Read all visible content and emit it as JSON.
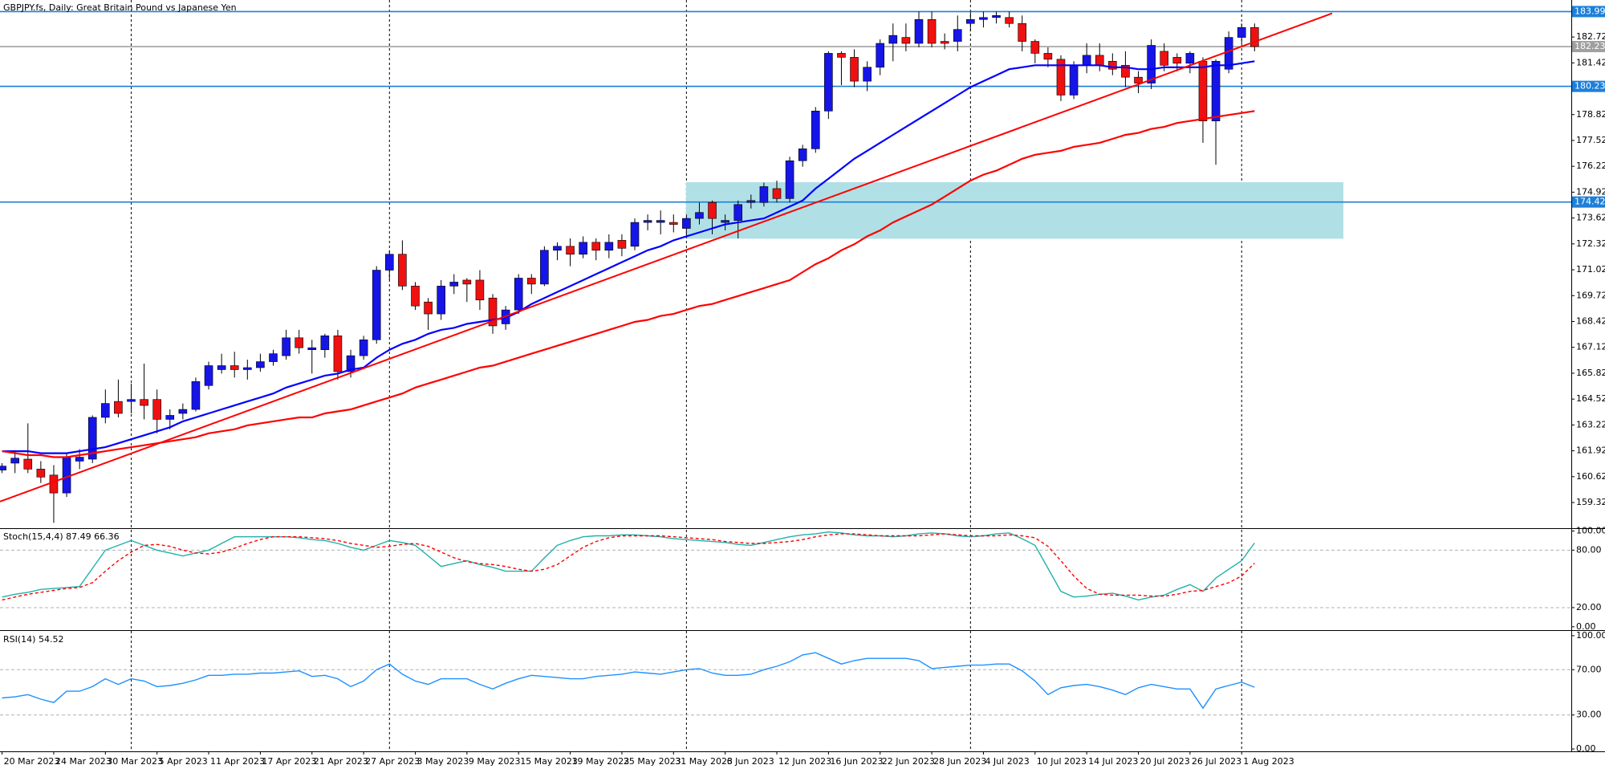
{
  "chart_data": [
    {
      "type": "candlestick",
      "title": "GBPJPY.fs, Daily:  Great Britain Pound vs Japanese Yen",
      "categories": [
        "20 Mar 2023",
        null,
        null,
        null,
        "24 Mar 2023",
        null,
        null,
        null,
        "30 Mar 2023",
        null,
        null,
        null,
        "5 Apr 2023",
        null,
        null,
        null,
        "11 Apr 2023",
        null,
        null,
        null,
        "17 Apr 2023",
        null,
        null,
        null,
        "21 Apr 2023",
        null,
        null,
        null,
        "27 Apr 2023",
        null,
        null,
        null,
        "3 May 2023",
        null,
        null,
        null,
        "9 May 2023",
        null,
        null,
        null,
        "15 May 2023",
        null,
        null,
        null,
        "19 May 2023",
        null,
        null,
        null,
        "25 May 2023",
        null,
        null,
        null,
        "31 May 2023",
        null,
        null,
        null,
        "6 Jun 2023",
        null,
        null,
        null,
        "12 Jun 2023",
        null,
        null,
        null,
        "16 Jun 2023",
        null,
        null,
        null,
        "22 Jun 2023",
        null,
        null,
        null,
        "28 Jun 2023",
        null,
        null,
        null,
        "4 Jul 2023",
        null,
        null,
        null,
        "10 Jul 2023",
        null,
        null,
        null,
        "14 Jul 2023",
        null,
        null,
        null,
        "20 Jul 2023",
        null,
        null,
        null,
        "26 Jul 2023",
        null,
        null,
        null,
        "1 Aug 2023",
        null
      ],
      "open": [
        160.95,
        161.3,
        161.5,
        161.0,
        160.7,
        159.8,
        161.4,
        161.5,
        163.6,
        164.4,
        164.4,
        164.5,
        164.5,
        163.5,
        163.8,
        164.0,
        165.2,
        166.0,
        166.2,
        166.0,
        166.1,
        166.4,
        166.7,
        167.6,
        167.0,
        167.0,
        167.7,
        165.9,
        166.7,
        167.5,
        171.0,
        171.8,
        170.2,
        169.4,
        168.8,
        170.2,
        170.5,
        170.5,
        169.6,
        168.3,
        169.0,
        170.6,
        170.3,
        172.0,
        172.2,
        171.8,
        172.4,
        172.0,
        172.5,
        172.2,
        173.4,
        173.4,
        173.4,
        173.1,
        173.6,
        174.4,
        173.4,
        173.5,
        174.4,
        174.4,
        175.1,
        174.6,
        176.5,
        177.1,
        179.0,
        181.9,
        181.7,
        180.5,
        181.2,
        182.4,
        182.7,
        182.4,
        183.6,
        182.5,
        182.5,
        183.4,
        183.6,
        183.7,
        183.7,
        183.4,
        182.5,
        181.9,
        181.6,
        179.8,
        181.3,
        181.8,
        181.5,
        181.3,
        180.7,
        180.4,
        182.0,
        181.7,
        181.4,
        181.5,
        178.5,
        181.1,
        182.7,
        183.2
      ],
      "high": [
        161.3,
        161.9,
        163.3,
        161.4,
        161.2,
        161.8,
        162.0,
        163.7,
        165.0,
        165.5,
        165.3,
        166.3,
        165.0,
        164.0,
        164.3,
        165.6,
        166.4,
        166.8,
        166.9,
        166.5,
        166.8,
        167.0,
        168.0,
        168.0,
        167.5,
        167.8,
        168.0,
        167.0,
        167.7,
        171.2,
        172.0,
        172.5,
        170.4,
        169.6,
        170.5,
        170.8,
        170.6,
        171.0,
        169.8,
        169.2,
        170.8,
        170.8,
        172.2,
        172.4,
        172.6,
        172.7,
        172.6,
        172.8,
        172.8,
        173.6,
        173.8,
        174.0,
        173.8,
        173.8,
        174.4,
        174.5,
        173.8,
        174.5,
        174.8,
        175.4,
        175.5,
        176.7,
        177.3,
        179.2,
        182.0,
        182.0,
        182.1,
        181.5,
        182.6,
        183.4,
        183.4,
        184.0,
        184.0,
        182.9,
        183.8,
        184.0,
        184.0,
        184.0,
        184.0,
        183.8,
        182.6,
        182.2,
        181.8,
        181.5,
        182.4,
        182.4,
        181.9,
        182.0,
        181.0,
        182.6,
        182.4,
        181.9,
        182.0,
        181.7,
        181.6,
        183.0,
        183.4,
        183.4
      ],
      "low": [
        160.8,
        160.8,
        160.8,
        160.3,
        158.3,
        159.6,
        161.0,
        161.3,
        163.3,
        163.6,
        163.8,
        163.5,
        162.8,
        163.0,
        163.5,
        163.9,
        165.0,
        165.8,
        165.6,
        165.5,
        165.9,
        166.2,
        166.5,
        166.8,
        165.8,
        166.6,
        165.5,
        165.6,
        166.5,
        167.3,
        170.5,
        170.0,
        169.0,
        168.0,
        168.5,
        169.8,
        169.4,
        169.0,
        167.8,
        168.0,
        168.8,
        169.8,
        170.2,
        171.5,
        171.2,
        171.6,
        171.5,
        171.6,
        171.7,
        172.0,
        173.0,
        172.8,
        172.9,
        172.6,
        173.3,
        172.8,
        173.0,
        172.6,
        174.1,
        174.2,
        174.4,
        174.4,
        176.2,
        176.9,
        178.6,
        180.3,
        180.2,
        180.0,
        180.8,
        181.5,
        182.0,
        182.2,
        182.2,
        182.1,
        182.0,
        183.0,
        183.2,
        183.4,
        183.2,
        182.0,
        181.4,
        181.2,
        179.5,
        179.6,
        180.9,
        181.0,
        180.8,
        180.2,
        179.9,
        180.1,
        181.0,
        181.0,
        180.9,
        177.4,
        176.3,
        180.9,
        182.4,
        182.0
      ],
      "close": [
        161.15,
        161.55,
        161.0,
        160.6,
        159.8,
        161.6,
        161.6,
        163.6,
        164.3,
        163.8,
        164.5,
        164.2,
        163.5,
        163.7,
        164.0,
        165.4,
        166.2,
        166.2,
        166.0,
        166.1,
        166.4,
        166.8,
        167.6,
        167.1,
        167.1,
        167.7,
        165.9,
        166.7,
        167.5,
        171.0,
        171.8,
        170.2,
        169.2,
        168.8,
        170.2,
        170.4,
        170.3,
        169.5,
        168.2,
        169.0,
        170.6,
        170.3,
        172.0,
        172.2,
        171.8,
        172.4,
        172.0,
        172.4,
        172.1,
        173.4,
        173.5,
        173.5,
        173.3,
        173.6,
        173.9,
        173.6,
        173.5,
        174.3,
        174.5,
        175.2,
        174.6,
        176.5,
        177.1,
        179.0,
        181.9,
        181.7,
        180.5,
        181.2,
        182.4,
        182.8,
        182.4,
        183.6,
        182.4,
        182.4,
        183.1,
        183.6,
        183.7,
        183.8,
        183.4,
        182.5,
        181.9,
        181.6,
        179.8,
        181.3,
        181.8,
        181.3,
        181.1,
        180.7,
        180.4,
        182.3,
        181.3,
        181.4,
        181.9,
        178.5,
        181.5,
        182.7,
        183.2,
        182.239
      ],
      "up_color": "#1515e8",
      "down_color": "#f01010",
      "wick_color": "#000000",
      "series": [
        {
          "color": "#0000ff",
          "values": [
            161.9,
            161.9,
            161.9,
            161.8,
            161.8,
            161.8,
            161.9,
            162.0,
            162.1,
            162.3,
            162.5,
            162.7,
            162.9,
            163.1,
            163.4,
            163.6,
            163.8,
            164.0,
            164.2,
            164.4,
            164.6,
            164.8,
            165.1,
            165.3,
            165.5,
            165.7,
            165.8,
            166.0,
            166.1,
            166.6,
            167.0,
            167.3,
            167.5,
            167.8,
            168.0,
            168.1,
            168.3,
            168.4,
            168.5,
            168.6,
            168.9,
            169.3,
            169.6,
            169.9,
            170.2,
            170.5,
            170.8,
            171.1,
            171.4,
            171.7,
            172.0,
            172.2,
            172.5,
            172.7,
            172.9,
            173.1,
            173.3,
            173.4,
            173.5,
            173.6,
            173.9,
            174.2,
            174.5,
            175.1,
            175.6,
            176.1,
            176.6,
            177.0,
            177.4,
            177.8,
            178.2,
            178.6,
            179.0,
            179.4,
            179.8,
            180.2,
            180.5,
            180.8,
            181.1,
            181.2,
            181.3,
            181.3,
            181.3,
            181.3,
            181.3,
            181.3,
            181.2,
            181.2,
            181.1,
            181.1,
            181.2,
            181.2,
            181.2,
            181.2,
            181.3,
            181.3,
            181.4,
            181.5
          ]
        },
        {
          "color": "#ff0000",
          "values": [
            161.9,
            161.8,
            161.7,
            161.7,
            161.6,
            161.6,
            161.7,
            161.8,
            161.9,
            162.0,
            162.1,
            162.2,
            162.3,
            162.4,
            162.5,
            162.6,
            162.8,
            162.9,
            163.0,
            163.2,
            163.3,
            163.4,
            163.5,
            163.6,
            163.6,
            163.8,
            163.9,
            164.0,
            164.2,
            164.4,
            164.6,
            164.8,
            165.1,
            165.3,
            165.5,
            165.7,
            165.9,
            166.1,
            166.2,
            166.4,
            166.6,
            166.8,
            167.0,
            167.2,
            167.4,
            167.6,
            167.8,
            168.0,
            168.2,
            168.4,
            168.5,
            168.7,
            168.8,
            169.0,
            169.2,
            169.3,
            169.5,
            169.7,
            169.9,
            170.1,
            170.3,
            170.5,
            170.9,
            171.3,
            171.6,
            172.0,
            172.3,
            172.7,
            173.0,
            173.4,
            173.7,
            174.0,
            174.3,
            174.7,
            175.1,
            175.5,
            175.8,
            176.0,
            176.3,
            176.6,
            176.8,
            176.9,
            177.0,
            177.2,
            177.3,
            177.4,
            177.6,
            177.8,
            177.9,
            178.1,
            178.2,
            178.4,
            178.5,
            178.6,
            178.7,
            178.8,
            178.9,
            179.0
          ]
        }
      ],
      "trendline": {
        "color": "#ff0000",
        "values": [
          159.37,
          183.91
        ]
      },
      "zone": {
        "color": "#b0e0e6",
        "range": [
          172.58,
          175.42
        ]
      },
      "levels": [
        {
          "value": 183.999,
          "color": "#1e7fd8"
        },
        {
          "value": 182.239,
          "color": "#a0a0a0"
        },
        {
          "value": 180.238,
          "color": "#1e7fd8"
        },
        {
          "value": 174.426,
          "color": "#1e7fd8"
        }
      ],
      "ylim": [
        158.03,
        184.58
      ],
      "yticks": [
        {
          "value": 159.32,
          "label": "159.320"
        },
        {
          "value": 160.62,
          "label": "160.620"
        },
        {
          "value": 161.92,
          "label": "161.920"
        },
        {
          "value": 163.22,
          "label": "163.220"
        },
        {
          "value": 164.52,
          "label": "164.520"
        },
        {
          "value": 165.82,
          "label": "165.820"
        },
        {
          "value": 167.12,
          "label": "167.120"
        },
        {
          "value": 168.42,
          "label": "168.420"
        },
        {
          "value": 169.72,
          "label": "169.720"
        },
        {
          "value": 171.02,
          "label": "171.020"
        },
        {
          "value": 172.32,
          "label": "172.320"
        },
        {
          "value": 173.62,
          "label": "173.620"
        },
        {
          "value": 174.92,
          "label": "174.920"
        },
        {
          "value": 176.22,
          "label": "176.220"
        },
        {
          "value": 177.52,
          "label": "177.520"
        },
        {
          "value": 178.82,
          "label": "178.820"
        },
        {
          "value": 181.42,
          "label": "181.420"
        },
        {
          "value": 182.72,
          "label": "182.720"
        }
      ]
    },
    {
      "type": "line",
      "title": "Stoch(15,4,4) 87.49 66.36",
      "series": [
        {
          "color": "#20b2aa",
          "style": "solid",
          "values": [
            31,
            34,
            36,
            39,
            40,
            41,
            42,
            61,
            80,
            85,
            90,
            85,
            80,
            77,
            74,
            77,
            80,
            87,
            94,
            94,
            94,
            94,
            94,
            93,
            91,
            90,
            87,
            83,
            80,
            85,
            90,
            88,
            85,
            74,
            63,
            66,
            69,
            65,
            62,
            58,
            58,
            58,
            72,
            85,
            90,
            94,
            95,
            95,
            96,
            96,
            95,
            94,
            92,
            91,
            90,
            89,
            88,
            86,
            85,
            88,
            91,
            94,
            96,
            97,
            99,
            98,
            96,
            95,
            95,
            94,
            95,
            97,
            98,
            97,
            95,
            94,
            95,
            97,
            98,
            92,
            85,
            61,
            37,
            31,
            32,
            34,
            35,
            32,
            28,
            31,
            33,
            39,
            44,
            37,
            51,
            60,
            69,
            87.49
          ]
        },
        {
          "color": "#ff0000",
          "style": "dashed",
          "values": [
            28,
            31,
            34,
            36,
            38,
            40,
            41,
            46,
            58,
            69,
            78,
            85,
            86,
            84,
            80,
            77,
            76,
            78,
            82,
            87,
            91,
            94,
            94,
            94,
            93,
            92,
            90,
            87,
            85,
            83,
            84,
            86,
            87,
            84,
            78,
            72,
            68,
            66,
            65,
            63,
            60,
            58,
            60,
            65,
            74,
            83,
            89,
            93,
            95,
            95,
            95,
            95,
            94,
            93,
            92,
            91,
            89,
            88,
            87,
            87,
            88,
            89,
            91,
            94,
            96,
            97,
            97,
            96,
            95,
            95,
            95,
            95,
            96,
            97,
            96,
            95,
            95,
            95,
            96,
            95,
            93,
            84,
            69,
            53,
            40,
            34,
            33,
            33,
            33,
            32,
            32,
            34,
            37,
            38,
            42,
            46,
            53,
            66.36
          ]
        }
      ],
      "levels": [
        80,
        20
      ],
      "ylim": [
        -3.5,
        102.1
      ],
      "yticks": [
        {
          "value": 100,
          "label": "100.00"
        },
        {
          "value": 80,
          "label": "80.00"
        },
        {
          "value": 20,
          "label": "20.00"
        },
        {
          "value": 0,
          "label": "0.00"
        }
      ]
    },
    {
      "type": "line",
      "title": "RSI(14) 54.52",
      "series": [
        {
          "color": "#1e90ff",
          "style": "solid",
          "values": [
            45,
            46,
            48,
            44,
            41,
            51,
            51,
            55,
            62,
            57,
            62,
            60,
            55,
            56,
            58,
            61,
            65,
            65,
            66,
            66,
            67,
            67,
            68,
            69,
            64,
            65,
            62,
            55,
            60,
            70,
            75,
            66,
            60,
            57,
            62,
            62,
            62,
            57,
            53,
            58,
            62,
            65,
            64,
            63,
            62,
            62,
            64,
            65,
            66,
            68,
            67,
            66,
            68,
            70,
            71,
            67,
            65,
            65,
            66,
            70,
            73,
            77,
            83,
            85,
            80,
            75,
            78,
            80,
            80,
            80,
            80,
            78,
            71,
            72,
            73,
            74,
            74,
            75,
            75,
            69,
            60,
            48,
            54,
            56,
            57,
            55,
            52,
            48,
            54,
            57,
            55,
            53,
            53,
            36,
            53,
            56,
            59,
            54.52
          ]
        }
      ],
      "levels": [
        70,
        30
      ],
      "ylim": [
        -2.1,
        103.5
      ],
      "yticks": [
        {
          "value": 100,
          "label": "100.00"
        },
        {
          "value": 70,
          "label": "70.00"
        },
        {
          "value": 30,
          "label": "30.00"
        },
        {
          "value": 0,
          "label": "0.00"
        }
      ]
    }
  ]
}
